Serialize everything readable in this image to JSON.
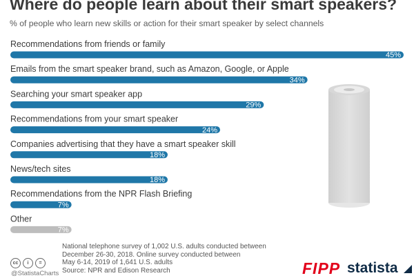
{
  "chart_data": {
    "type": "bar",
    "orientation": "horizontal",
    "title": "Where do people learn about their smart speakers?",
    "subtitle": "% of people who learn new skills or action for their smart speaker by select channels",
    "categories": [
      "Recommendations from friends or family",
      "Emails from the smart speaker brand, such as Amazon, Google, or Apple",
      "Searching  your smart speaker app",
      "Recommendations from your smart speaker",
      "Companies advertising that they have a smart speaker skill",
      "News/tech sites",
      "Recommendations from the NPR Flash Briefing",
      "Other"
    ],
    "values": [
      45,
      34,
      29,
      24,
      18,
      18,
      7,
      7
    ],
    "value_labels": [
      "45%",
      "34%",
      "29%",
      "24%",
      "18%",
      "18%",
      "7%",
      "7%"
    ],
    "xlim": [
      0,
      45
    ],
    "grid": false,
    "colors": [
      "#1f77a8",
      "#1f77a8",
      "#1f77a8",
      "#1f77a8",
      "#1f77a8",
      "#1f77a8",
      "#1f77a8",
      "#bdbdbd"
    ]
  },
  "footer": {
    "note_lines": [
      "National telephone survey of 1,002 U.S. adults conducted between",
      "December 26-30, 2018. Online survey conducted between",
      "May 6-14, 2019 of 1,641 U.S. adults"
    ],
    "source": "Source: NPR and Edison Research",
    "handle": "@StatistaCharts",
    "license_icons": [
      "cc",
      "i",
      "="
    ],
    "logos": {
      "fipp": "FIPP",
      "statista": "statista"
    }
  },
  "illustration": {
    "name": "smart-speaker-icon"
  }
}
